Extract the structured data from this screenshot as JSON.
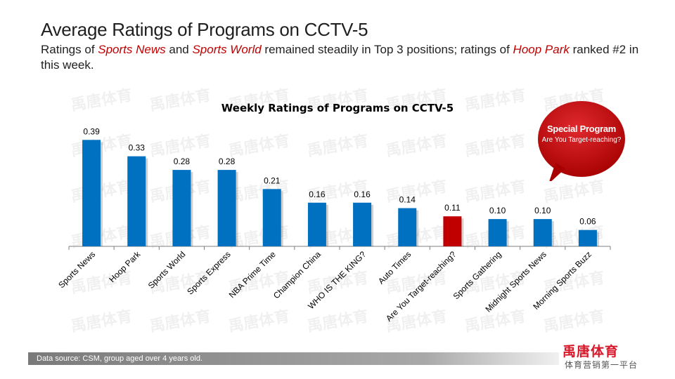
{
  "header": {
    "title": "Average Ratings of Programs on CCTV-5",
    "subtitle_parts": [
      "Ratings of ",
      "Sports News",
      " and ",
      "Sports World",
      " remained steadily in Top 3 positions; ratings of ",
      "Hoop Park",
      " ranked #2 in this week."
    ]
  },
  "watermark_text": "禹唐体育",
  "callout": {
    "title": "Special Program",
    "subtitle": "Are You Target-reaching?",
    "color": "#c00000"
  },
  "footer": {
    "source": "Data source: CSM, group aged over 4 years old.",
    "logo": "禹唐体育",
    "tagline": "体育营销第一平台"
  },
  "colors": {
    "bar": "#0070c0",
    "highlight": "#c00000",
    "title_accent": "#c00000"
  },
  "chart_data": {
    "type": "bar",
    "title": "Weekly Ratings of Programs on CCTV-5",
    "categories": [
      "Sports News",
      "Hoop Park",
      "Sports World",
      "Sports Express",
      "NBA Prime Time",
      "Champion China",
      "WHO IS THE KING?",
      "Auto Times",
      "Are You Target-reaching?",
      "Sports Gathering",
      "Midnight Sports News",
      "Morning Sports Buzz"
    ],
    "values": [
      0.39,
      0.33,
      0.28,
      0.28,
      0.21,
      0.16,
      0.16,
      0.14,
      0.11,
      0.1,
      0.1,
      0.06
    ],
    "value_labels": [
      "0.39",
      "0.33",
      "0.28",
      "0.28",
      "0.21",
      "0.16",
      "0.16",
      "0.14",
      "0.11",
      "0.10",
      "0.10",
      "0.06"
    ],
    "highlight_category": "Are You Target-reaching?",
    "xlabel": "",
    "ylabel": "",
    "ylim": [
      0,
      0.45
    ],
    "grid": false,
    "legend": "none"
  }
}
